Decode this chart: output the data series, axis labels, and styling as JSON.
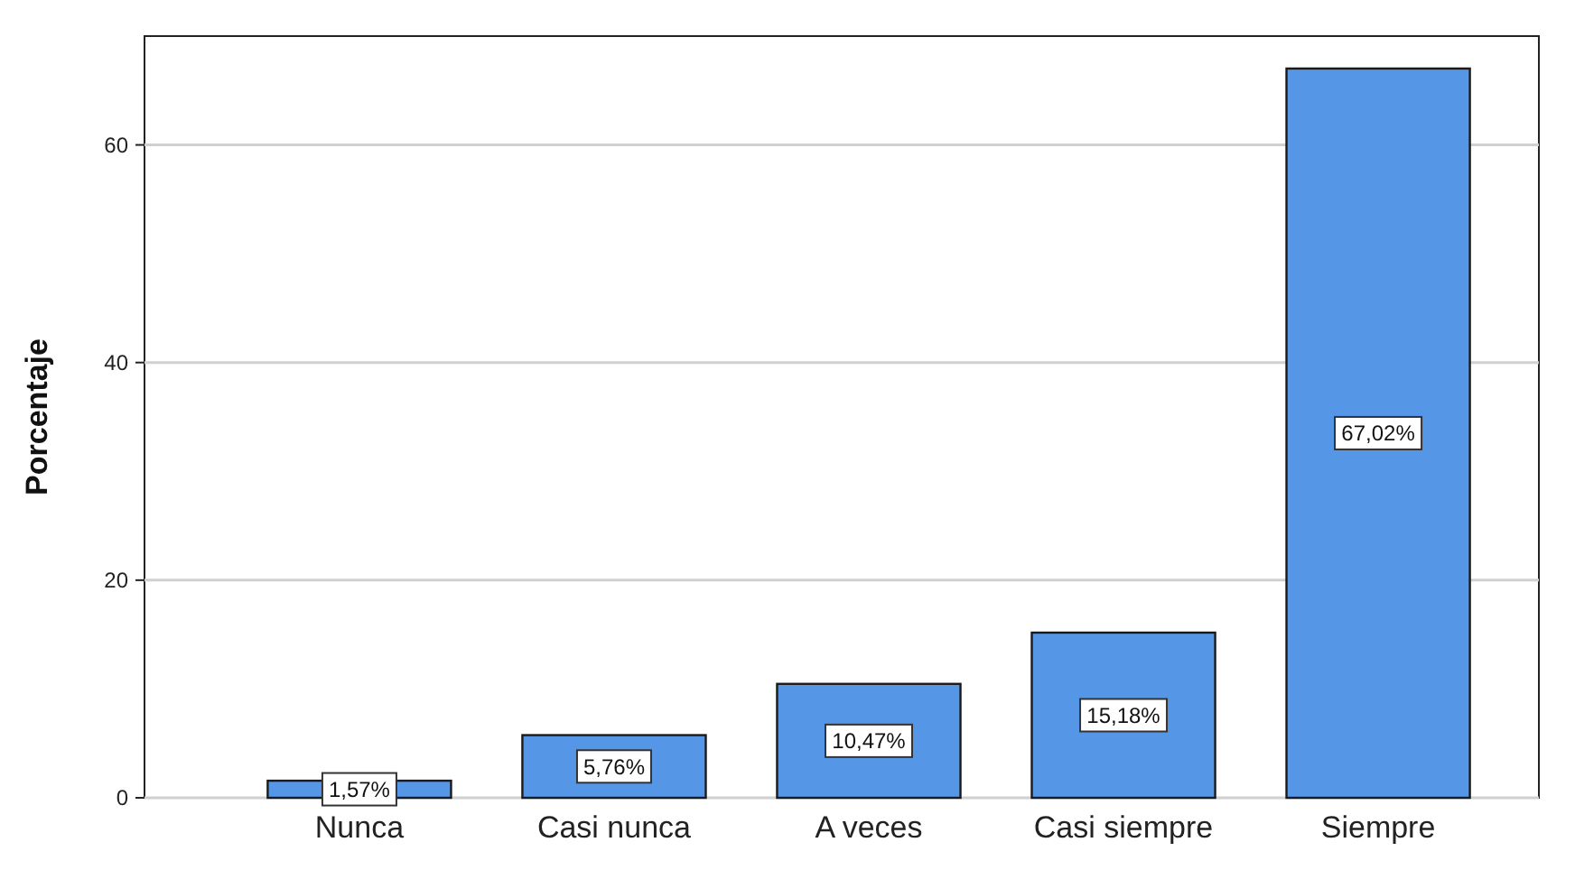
{
  "chart_data": {
    "type": "bar",
    "ylabel": "Porcentaje",
    "categories": [
      "Nunca",
      "Casi nunca",
      "A veces",
      "Casi siempre",
      "Siempre"
    ],
    "values": [
      1.57,
      5.76,
      10.47,
      15.18,
      67.02
    ],
    "value_labels": [
      "1,57%",
      "5,76%",
      "10,47%",
      "15,18%",
      "67,02%"
    ],
    "color": "#5596e6",
    "ylim": [
      0,
      70
    ],
    "yticks": [
      0,
      20,
      40,
      60
    ],
    "grid": "y"
  }
}
